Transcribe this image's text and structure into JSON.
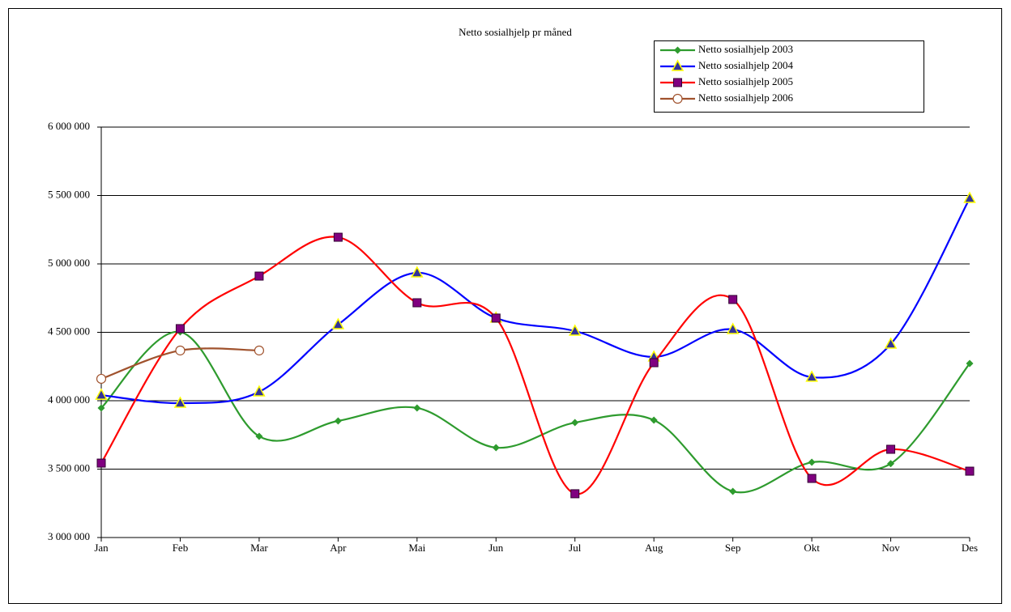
{
  "chart_data": {
    "type": "line",
    "title": "Netto sosialhjelp pr måned",
    "categories": [
      "Jan",
      "Feb",
      "Mar",
      "Apr",
      "Mai",
      "Jun",
      "Jul",
      "Aug",
      "Sep",
      "Okt",
      "Nov",
      "Des"
    ],
    "series": [
      {
        "name": "Netto sosialhjelp 2003",
        "color": "#2e9b2e",
        "marker": "diamond",
        "marker_color": "#2e9b2e",
        "values": [
          3947000,
          4503000,
          3740000,
          3852000,
          3947000,
          3657000,
          3840000,
          3858000,
          3337000,
          3550000,
          3540000,
          4272000
        ]
      },
      {
        "name": "Netto sosialhjelp 2004",
        "color": "#0000ff",
        "marker": "triangle",
        "marker_color": "#333399",
        "values": [
          4041000,
          3982000,
          4065000,
          4556000,
          4935000,
          4604000,
          4509000,
          4320000,
          4521000,
          4172000,
          4414000,
          5479000
        ]
      },
      {
        "name": "Netto sosialhjelp 2005",
        "color": "#ff0000",
        "marker": "square",
        "marker_color": "#800080",
        "values": [
          3544000,
          4527000,
          4911000,
          5195000,
          4716000,
          4604000,
          3320000,
          4278000,
          4740000,
          3432000,
          3645000,
          3485000
        ]
      },
      {
        "name": "Netto sosialhjelp 2006",
        "color": "#a0522d",
        "marker": "circle",
        "marker_color": "#a0522d",
        "values": [
          4160000,
          4367000,
          4367000,
          null,
          null,
          null,
          null,
          null,
          null,
          null,
          null,
          null
        ]
      }
    ],
    "ylim": [
      3000000,
      6000000
    ],
    "yticks": [
      {
        "value": 3000000,
        "label": "3 000 000"
      },
      {
        "value": 3500000,
        "label": "3 500 000"
      },
      {
        "value": 4000000,
        "label": "4 000 000"
      },
      {
        "value": 4500000,
        "label": "4 500 000"
      },
      {
        "value": 5000000,
        "label": "5 000 000"
      },
      {
        "value": 5500000,
        "label": "5 500 000"
      },
      {
        "value": 6000000,
        "label": "6 000 000"
      }
    ],
    "grid": true,
    "legend": "upper right"
  }
}
